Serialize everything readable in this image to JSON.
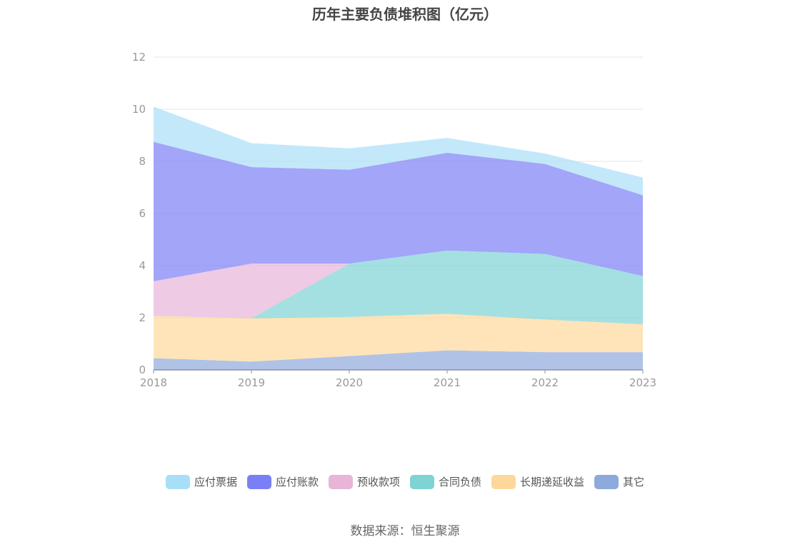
{
  "chart_data": {
    "type": "area",
    "stacked": true,
    "title": "历年主要负债堆积图（亿元）",
    "categories": [
      "2018",
      "2019",
      "2020",
      "2021",
      "2022",
      "2023"
    ],
    "ylim": [
      0,
      12
    ],
    "yticks": [
      "0",
      "2",
      "4",
      "6",
      "8",
      "10",
      "12"
    ],
    "grid": true,
    "legend_position": "bottom",
    "series": [
      {
        "name": "其它",
        "color": "#8ea9db",
        "values": [
          0.45,
          0.32,
          0.53,
          0.75,
          0.68,
          0.68
        ]
      },
      {
        "name": "长期递延收益",
        "color": "#fdd89a",
        "values": [
          1.62,
          1.66,
          1.5,
          1.4,
          1.25,
          1.07
        ]
      },
      {
        "name": "合同负债",
        "color": "#7ed3d4",
        "values": [
          0,
          0,
          2.05,
          2.43,
          2.52,
          1.85
        ]
      },
      {
        "name": "预收款项",
        "color": "#e8b4d8",
        "values": [
          1.33,
          2.1,
          0,
          0,
          0,
          0
        ]
      },
      {
        "name": "应付账款",
        "color": "#7b7ff5",
        "values": [
          5.35,
          3.7,
          3.6,
          3.75,
          3.45,
          3.1
        ]
      },
      {
        "name": "应付票据",
        "color": "#a9def8",
        "values": [
          1.35,
          0.92,
          0.82,
          0.57,
          0.4,
          0.68
        ]
      }
    ]
  },
  "legend": [
    {
      "label": "应付票据",
      "color": "#a9def8"
    },
    {
      "label": "应付账款",
      "color": "#7b7ff5"
    },
    {
      "label": "预收款项",
      "color": "#e8b4d8"
    },
    {
      "label": "合同负债",
      "color": "#7ed3d4"
    },
    {
      "label": "长期递延收益",
      "color": "#fdd89a"
    },
    {
      "label": "其它",
      "color": "#8ea9db"
    }
  ],
  "source": "数据来源：恒生聚源"
}
